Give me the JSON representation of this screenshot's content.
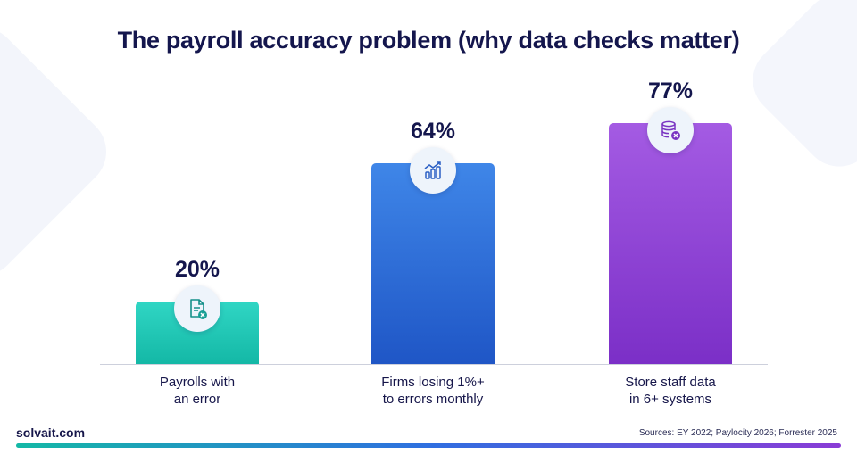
{
  "chart_data": {
    "type": "bar",
    "title": "The payroll accuracy problem (why data checks matter)",
    "categories": [
      "Payrolls with an error",
      "Firms losing 1%+ to errors monthly",
      "Store staff data in 6+ systems"
    ],
    "category_lines": [
      [
        "Payrolls with",
        "an error"
      ],
      [
        "Firms losing 1%+",
        "to errors monthly"
      ],
      [
        "Store staff data",
        "in 6+ systems"
      ]
    ],
    "values": [
      20,
      64,
      77
    ],
    "value_labels": [
      "20%",
      "64%",
      "77%"
    ],
    "ylim": [
      0,
      100
    ],
    "grid": false,
    "colors": [
      "#1fc7b5",
      "#2b6ad6",
      "#8e42d4"
    ],
    "icons": [
      "document-error-icon",
      "growth-chart-icon",
      "database-error-icon"
    ]
  },
  "footer": {
    "brand": "solvait.com",
    "sources": "Sources: EY 2022; Paylocity 2026; Forrester 2025"
  }
}
